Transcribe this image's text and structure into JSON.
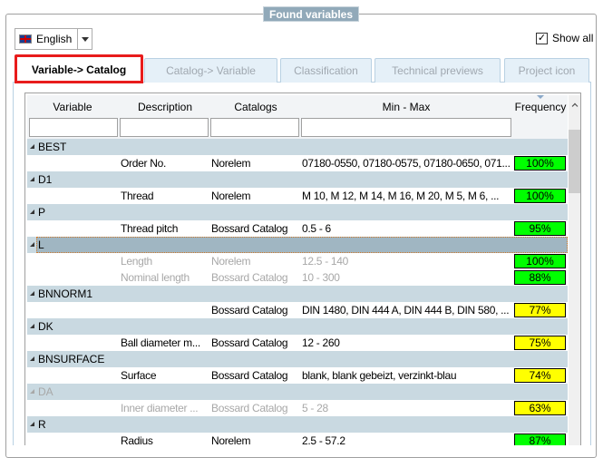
{
  "group_title": "Found variables",
  "language": {
    "value": "English",
    "icon": "uk-flag-icon"
  },
  "show_all": {
    "label": "Show all",
    "checked": true
  },
  "tabs": [
    {
      "label": "Variable-> Catalog",
      "active": true
    },
    {
      "label": "Catalog-> Variable"
    },
    {
      "label": "Classification"
    },
    {
      "label": "Technical previews"
    },
    {
      "label": "Project icon"
    }
  ],
  "columns": [
    "Variable",
    "Description",
    "Catalogs",
    "Min - Max",
    "Frequency"
  ],
  "colors": {
    "green": "#00ff00",
    "yellow": "#ffff00",
    "group_row": "#c9d9e1",
    "selection": "#a0b6c2"
  },
  "groups": [
    {
      "name": "BEST",
      "items": [
        {
          "description": "Order No.",
          "catalog": "Norelem",
          "minmax": "07180-0550, 07180-0575, 07180-0650, 071...",
          "frequency": "100%",
          "color": "#00ff00"
        }
      ]
    },
    {
      "name": "D1",
      "items": [
        {
          "description": "Thread",
          "catalog": "Norelem",
          "minmax": "M 10, M 12, M 14, M 16, M 20, M 5, M 6, ...",
          "frequency": "100%",
          "color": "#00ff00"
        }
      ]
    },
    {
      "name": "P",
      "items": [
        {
          "description": "Thread pitch",
          "catalog": "Bossard Catalog",
          "minmax": "0.5 - 6",
          "frequency": "95%",
          "color": "#00ff00"
        }
      ]
    },
    {
      "name": "L",
      "selected": true,
      "items": [
        {
          "description": "Length",
          "catalog": "Norelem",
          "minmax": "12.5 - 140",
          "frequency": "100%",
          "color": "#00ff00",
          "disabled": true
        },
        {
          "description": "Nominal length",
          "catalog": "Bossard Catalog",
          "minmax": "10 - 300",
          "frequency": "88%",
          "color": "#00ff00",
          "disabled": true
        }
      ]
    },
    {
      "name": "BNNORM1",
      "items": [
        {
          "description": "",
          "catalog": "Bossard Catalog",
          "minmax": "DIN 1480, DIN 444 A, DIN 444 B, DIN 580, ...",
          "frequency": "77%",
          "color": "#ffff00"
        }
      ]
    },
    {
      "name": "DK",
      "items": [
        {
          "description": "Ball diameter m...",
          "catalog": "Bossard Catalog",
          "minmax": "12 - 260",
          "frequency": "75%",
          "color": "#ffff00"
        }
      ]
    },
    {
      "name": "BNSURFACE",
      "items": [
        {
          "description": "Surface",
          "catalog": "Bossard Catalog",
          "minmax": "blank, blank gebeizt, verzinkt-blau",
          "frequency": "74%",
          "color": "#ffff00"
        }
      ]
    },
    {
      "name": "DA",
      "disabled": true,
      "items": [
        {
          "description": "Inner diameter ...",
          "catalog": "Bossard Catalog",
          "minmax": "5 - 28",
          "frequency": "63%",
          "color": "#ffff00",
          "disabled": true
        }
      ]
    },
    {
      "name": "R",
      "items": [
        {
          "description": "Radius",
          "catalog": "Norelem",
          "minmax": "2.5 - 57.2",
          "frequency": "87%",
          "color": "#00ff00"
        }
      ]
    }
  ]
}
